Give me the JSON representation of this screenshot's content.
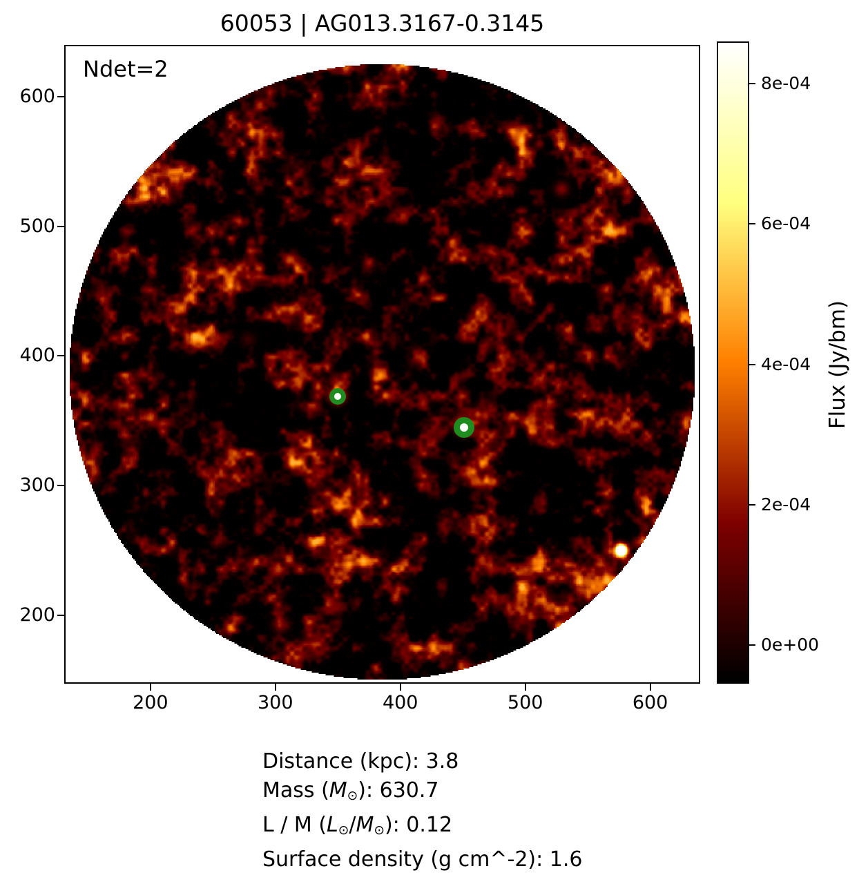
{
  "chart_data": {
    "type": "heatmap",
    "title": "60053 | AG013.3167-0.3145",
    "annotation": "Ndet=2",
    "colormap": "afmhot",
    "field_shape": "circular aperture masked on white background",
    "xlim": [
      131,
      640
    ],
    "ylim": [
      147,
      640
    ],
    "x_ticks": [
      200,
      300,
      400,
      500,
      600
    ],
    "y_ticks": [
      200,
      300,
      400,
      500,
      600
    ],
    "grid": false,
    "detections": [
      {
        "x": 349,
        "y": 370
      },
      {
        "x": 450,
        "y": 346
      }
    ],
    "bright_source": {
      "x": 577,
      "y": 250
    },
    "marker_color": "#1e8c1e",
    "colorbar": {
      "label": "Flux (Jy/bm)",
      "tick_values": [
        0.0008,
        0.0006,
        0.0004,
        0.0002,
        0
      ],
      "tick_labels": [
        "8e-04",
        "6e-04",
        "4e-04",
        "2e-04",
        "0e+00"
      ],
      "vmin": -5.5e-05,
      "vmax": 0.00086
    },
    "info_lines": [
      [
        {
          "t": "Distance (kpc): 3.8"
        }
      ],
      [
        {
          "t": "Mass ("
        },
        {
          "t": "M",
          "s": "i"
        },
        {
          "t": "⊙",
          "s": "sub"
        },
        {
          "t": "): 630.7"
        }
      ],
      [
        {
          "t": "L / M ("
        },
        {
          "t": "L",
          "s": "i"
        },
        {
          "t": "⊙",
          "s": "sub"
        },
        {
          "t": "/"
        },
        {
          "t": "M",
          "s": "i"
        },
        {
          "t": "⊙",
          "s": "sub"
        },
        {
          "t": "): 0.12"
        }
      ],
      [
        {
          "t": "Surface density (g cm^-2): 1.6"
        }
      ]
    ]
  }
}
